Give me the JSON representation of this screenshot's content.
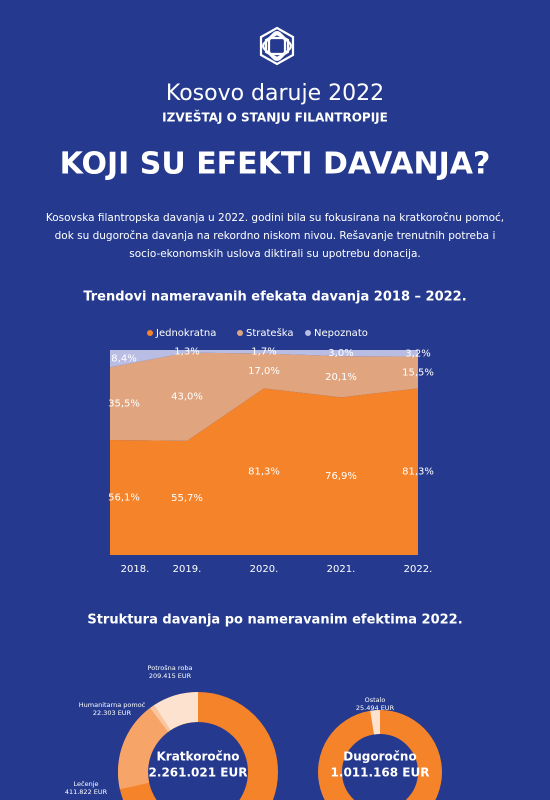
{
  "header": {
    "title": "Kosovo daruje 2022",
    "subtitle": "IZVEŠTAJ O STANJU FILANTROPIJE",
    "headline": "KOJI SU EFEKTI DAVANJA?",
    "intro": "Kosovska filantropska davanja u 2022. godini bila su fokusirana na kratkoročnu pomoć, dok su dugoročna davanja na rekordno niskom nivou. Rešavanje trenutnih potreba i socio-ekonomskih uslova diktirali su upotrebu donacija."
  },
  "structure_title": "Struktura davanja po nameravanim efektima 2022.",
  "chart_data": [
    {
      "type": "area",
      "stacked": true,
      "title": "Trendovi nameravanih efekata davanja 2018 – 2022.",
      "categories": [
        "2018.",
        "2019.",
        "2020.",
        "2021.",
        "2022."
      ],
      "ylim": [
        0,
        100
      ],
      "legend": "top",
      "series": [
        {
          "name": "Jednokratna",
          "color": "#f5832a",
          "values": [
            56.1,
            55.7,
            81.3,
            76.9,
            81.3
          ],
          "value_labels": [
            "56,1%",
            "55,7%",
            "81,3%",
            "76,9%",
            "81,3%"
          ]
        },
        {
          "name": "Strateška",
          "color": "#e0a57f",
          "values": [
            35.5,
            43.0,
            17.0,
            20.1,
            15.5
          ],
          "value_labels": [
            "35,5%",
            "43,0%",
            "17,0%",
            "20,1%",
            "15,5%"
          ]
        },
        {
          "name": "Nepoznato",
          "color": "#b9bde3",
          "values": [
            8.4,
            1.3,
            1.7,
            3.0,
            3.2
          ],
          "value_labels": [
            "8,4%",
            "1,3%",
            "1,7%",
            "3,0%",
            "3,2%"
          ]
        }
      ]
    },
    {
      "type": "donut",
      "center_label": "Kratkoročno",
      "total": 2261021,
      "total_label": "2.261.021 EUR",
      "color": "#f5832a",
      "categories": [
        "Potrošna roba",
        "Humanitarna pomoć",
        "Lečenje"
      ],
      "values": [
        209415,
        22303,
        411822
      ],
      "value_labels": [
        "209.415 EUR",
        "22.303 EUR",
        "411.822 EUR"
      ],
      "colors": [
        "#fde3cf",
        "#f9c6a0",
        "#f7a468"
      ]
    },
    {
      "type": "donut",
      "center_label": "Dugoročno",
      "total": 1011168,
      "total_label": "1.011.168 EUR",
      "color": "#f5832a",
      "categories": [
        "Ostalo"
      ],
      "values": [
        25494
      ],
      "value_labels": [
        "25.494 EUR"
      ],
      "colors": [
        "#fde3cf"
      ]
    }
  ]
}
